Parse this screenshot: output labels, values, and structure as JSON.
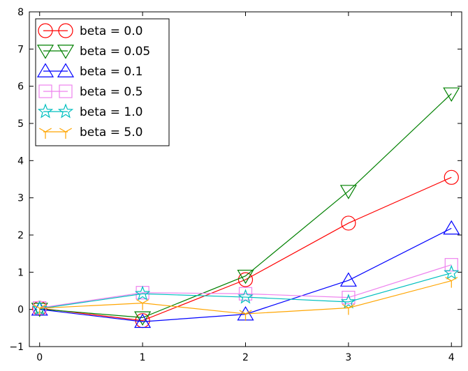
{
  "chart_data": {
    "type": "line",
    "title": "",
    "xlabel": "",
    "ylabel": "",
    "x": [
      0,
      1,
      2,
      3,
      4
    ],
    "xlim": [
      -0.1,
      4.1
    ],
    "ylim": [
      -1,
      8
    ],
    "xticks": [
      "0",
      "1",
      "2",
      "3",
      "4"
    ],
    "yticks": [
      "−1",
      "0",
      "1",
      "2",
      "3",
      "4",
      "5",
      "6",
      "7",
      "8"
    ],
    "grid": false,
    "legend_position": "top-left",
    "series": [
      {
        "name": "beta = 0.0",
        "color": "#ff0000",
        "marker": "circle",
        "values": [
          0.03,
          -0.3,
          0.8,
          2.32,
          3.55
        ]
      },
      {
        "name": "beta = 0.05",
        "color": "#008000",
        "marker": "triangle-down",
        "values": [
          0.01,
          -0.22,
          0.9,
          3.18,
          5.8
        ]
      },
      {
        "name": "beta = 0.1",
        "color": "#0000ff",
        "marker": "triangle-up",
        "values": [
          0.0,
          -0.33,
          -0.13,
          0.78,
          2.18
        ]
      },
      {
        "name": "beta = 0.5",
        "color": "#ee82ee",
        "marker": "square",
        "values": [
          0.04,
          0.45,
          0.42,
          0.32,
          1.2
        ]
      },
      {
        "name": "beta = 1.0",
        "color": "#00bfbf",
        "marker": "star",
        "values": [
          0.02,
          0.42,
          0.33,
          0.2,
          0.98
        ]
      },
      {
        "name": "beta = 5.0",
        "color": "#ffa500",
        "marker": "tri-down",
        "values": [
          0.03,
          0.17,
          -0.12,
          0.04,
          0.77
        ]
      }
    ]
  }
}
